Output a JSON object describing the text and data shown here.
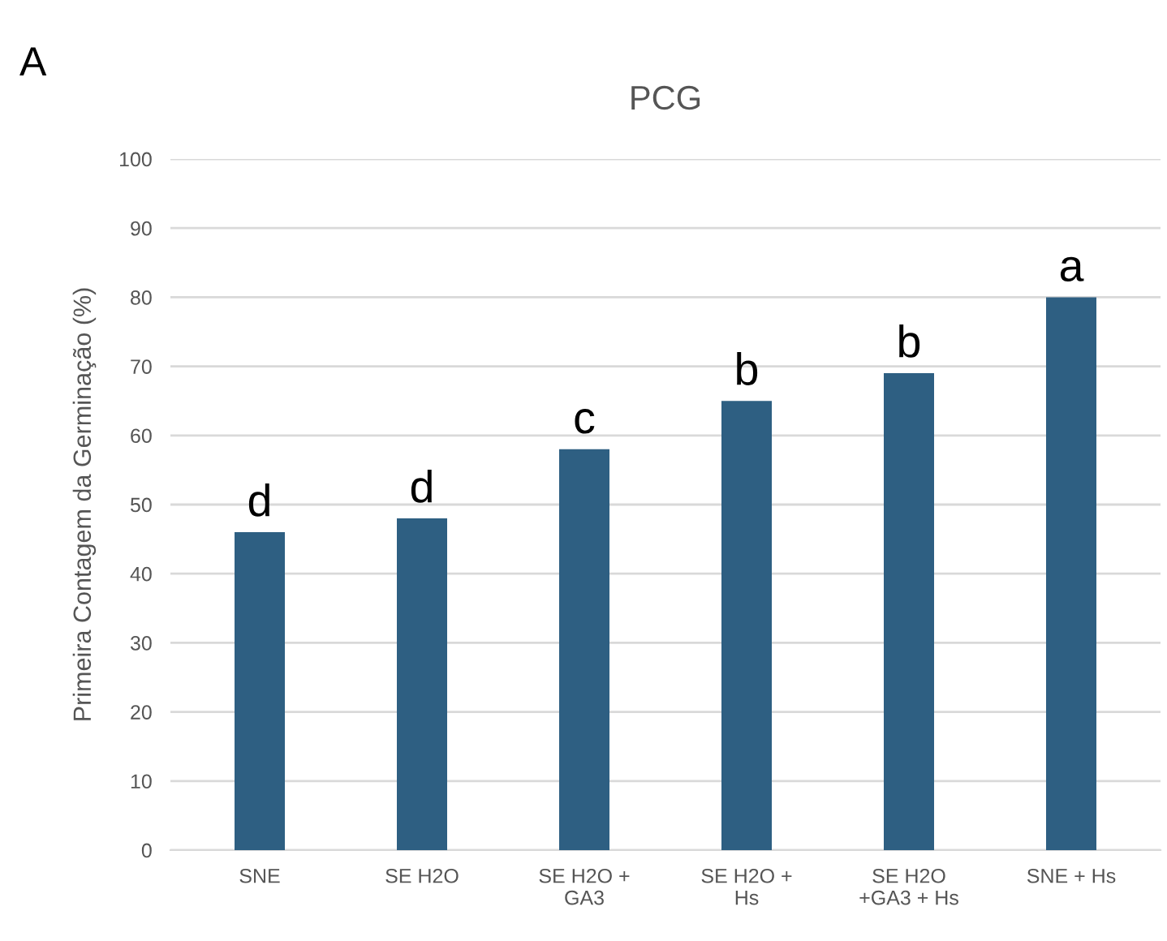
{
  "chart_data": {
    "type": "bar",
    "title": "PCG",
    "ylabel": "Primeira Contagem da Germinação (%)",
    "categories": [
      "SNE",
      "SE H2O",
      "SE H2O +\nGA3",
      "SE H2O +\nHs",
      "SE H2O\n+GA3 + Hs",
      "SNE + Hs"
    ],
    "values": [
      46,
      48,
      58,
      65,
      69,
      80
    ],
    "value_labels": [
      "d",
      "d",
      "c",
      "b",
      "b",
      "a"
    ],
    "color": "#2e5f82",
    "ylim": [
      0,
      100
    ],
    "yticks": [
      0,
      10,
      20,
      30,
      40,
      50,
      60,
      70,
      80,
      90,
      100
    ],
    "grid": "y",
    "legend": false,
    "annotations": [
      "A"
    ]
  }
}
